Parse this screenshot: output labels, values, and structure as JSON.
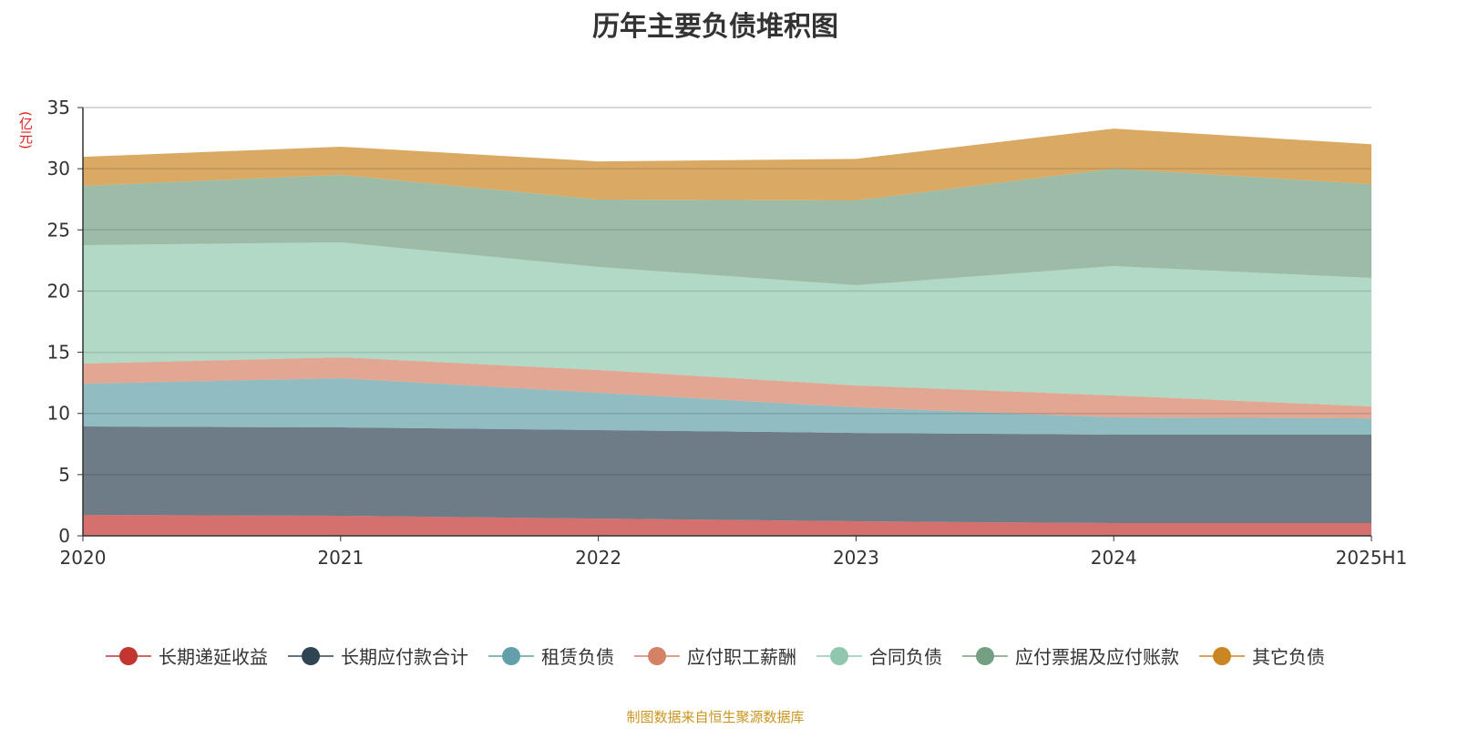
{
  "chart_data": {
    "type": "area",
    "stacked": true,
    "title": "历年主要负债堆积图",
    "ylabel": "(亿元)",
    "xlabel": "",
    "categories": [
      "2020",
      "2021",
      "2022",
      "2023",
      "2024",
      "2025H1"
    ],
    "ylim": [
      0,
      35
    ],
    "yticks": [
      0,
      5,
      10,
      15,
      20,
      25,
      30,
      35
    ],
    "grid": true,
    "legend_position": "bottom",
    "series": [
      {
        "name": "长期递延收益",
        "color": "#c23531",
        "values": [
          1.71,
          1.64,
          1.41,
          1.19,
          1.04,
          1.04
        ]
      },
      {
        "name": "长期应付款合计",
        "color": "#2f4554",
        "values": [
          7.23,
          7.22,
          7.23,
          7.22,
          7.23,
          7.23
        ]
      },
      {
        "name": "租赁负债",
        "color": "#61a0a8",
        "values": [
          3.49,
          4.02,
          3.05,
          2.09,
          1.41,
          1.33
        ]
      },
      {
        "name": "应付职工薪酬",
        "color": "#d48265",
        "values": [
          1.64,
          1.71,
          1.86,
          1.79,
          1.79,
          0.97
        ]
      },
      {
        "name": "合同负债",
        "color": "#91c7ae",
        "values": [
          9.68,
          9.39,
          8.42,
          8.19,
          10.57,
          10.5
        ]
      },
      {
        "name": "应付票据及应付账款",
        "color": "#749f83",
        "values": [
          4.85,
          5.51,
          5.51,
          6.92,
          7.96,
          7.67
        ]
      },
      {
        "name": "其它负债",
        "color": "#ca8622",
        "values": [
          2.37,
          2.31,
          3.12,
          3.4,
          3.28,
          3.26
        ]
      }
    ]
  },
  "source": "制图数据来自恒生聚源数据库"
}
